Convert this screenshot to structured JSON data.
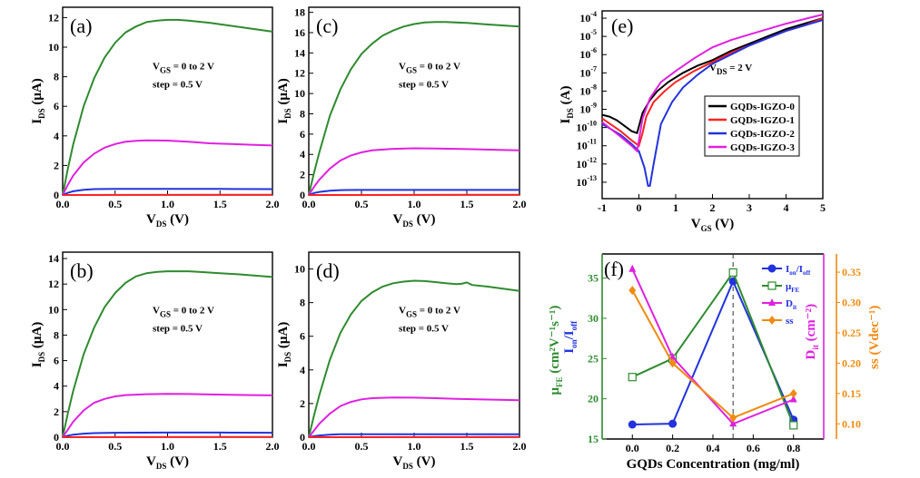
{
  "figure": {
    "background": "#ffffff"
  },
  "colors": {
    "green": "#2e8b2e",
    "magenta": "#e020e0",
    "blue": "#2233dd",
    "red": "#ff2222",
    "black": "#000000",
    "orange": "#f08a10"
  },
  "chart_data": [
    {
      "id": "a",
      "type": "line",
      "panel_label": "(a)",
      "xlabel": {
        "main": "V",
        "sub": "DS",
        "unit": " (V)"
      },
      "ylabel": {
        "main": "I",
        "sub": "DS",
        "unit": " (μA)"
      },
      "xlim": [
        0,
        2.0
      ],
      "ylim": [
        0,
        12.7
      ],
      "xticks": [
        0.0,
        0.5,
        1.0,
        1.5,
        2.0
      ],
      "xtick_labels": [
        "0.0",
        "0.5",
        "1.0",
        "1.5",
        "2.0"
      ],
      "yticks": [
        0,
        2,
        4,
        6,
        8,
        10,
        12
      ],
      "ytick_labels": [
        "0",
        "2",
        "4",
        "6",
        "8",
        "10",
        "12"
      ],
      "annotation": {
        "line1_main": "V",
        "line1_sub": "GS",
        "line1_rest": " = 0 to 2 V",
        "line2": "step = 0.5 V"
      },
      "series": [
        {
          "color": "green",
          "x": [
            0,
            0.05,
            0.1,
            0.2,
            0.3,
            0.4,
            0.5,
            0.6,
            0.7,
            0.8,
            0.9,
            1.0,
            1.1,
            1.2,
            1.4,
            1.6,
            1.8,
            2.0
          ],
          "y": [
            0,
            1.8,
            3.4,
            6.0,
            7.9,
            9.3,
            10.3,
            11.0,
            11.4,
            11.7,
            11.8,
            11.85,
            11.85,
            11.8,
            11.65,
            11.45,
            11.25,
            11.05
          ]
        },
        {
          "color": "magenta",
          "x": [
            0,
            0.05,
            0.1,
            0.2,
            0.3,
            0.4,
            0.5,
            0.6,
            0.7,
            0.8,
            1.0,
            1.2,
            1.4,
            1.6,
            1.8,
            2.0
          ],
          "y": [
            0,
            0.7,
            1.3,
            2.2,
            2.8,
            3.2,
            3.45,
            3.6,
            3.67,
            3.7,
            3.68,
            3.6,
            3.5,
            3.45,
            3.4,
            3.35
          ]
        },
        {
          "color": "blue",
          "x": [
            0,
            0.05,
            0.1,
            0.2,
            0.3,
            0.5,
            1.0,
            1.5,
            2.0
          ],
          "y": [
            0,
            0.15,
            0.25,
            0.35,
            0.4,
            0.42,
            0.42,
            0.41,
            0.4
          ]
        },
        {
          "color": "red",
          "x": [
            0,
            2.0
          ],
          "y": [
            0,
            0.02
          ]
        }
      ]
    },
    {
      "id": "c",
      "type": "line",
      "panel_label": "(c)",
      "xlabel": {
        "main": "V",
        "sub": "DS",
        "unit": " (V)"
      },
      "ylabel": {
        "main": "I",
        "sub": "DS",
        "unit": " (μA)"
      },
      "xlim": [
        0,
        2.0
      ],
      "ylim": [
        0,
        18.5
      ],
      "xticks": [
        0.0,
        0.5,
        1.0,
        1.5,
        2.0
      ],
      "xtick_labels": [
        "0.0",
        "0.5",
        "1.0",
        "1.5",
        "2.0"
      ],
      "yticks": [
        0,
        2,
        4,
        6,
        8,
        10,
        12,
        14,
        16,
        18
      ],
      "ytick_labels": [
        "0",
        "2",
        "4",
        "6",
        "8",
        "10",
        "12",
        "14",
        "16",
        "18"
      ],
      "annotation": {
        "line1_main": "V",
        "line1_sub": "GS",
        "line1_rest": " = 0 to 2 V",
        "line2": "step = 0.5 V"
      },
      "series": [
        {
          "color": "green",
          "x": [
            0,
            0.05,
            0.1,
            0.2,
            0.3,
            0.4,
            0.5,
            0.6,
            0.7,
            0.8,
            0.9,
            1.0,
            1.1,
            1.2,
            1.3,
            1.5,
            1.7,
            2.0
          ],
          "y": [
            0,
            2.2,
            4.2,
            7.8,
            10.4,
            12.4,
            13.9,
            14.9,
            15.7,
            16.2,
            16.6,
            16.85,
            17.0,
            17.05,
            17.05,
            16.95,
            16.8,
            16.6
          ]
        },
        {
          "color": "magenta",
          "x": [
            0,
            0.05,
            0.1,
            0.2,
            0.3,
            0.4,
            0.5,
            0.6,
            0.8,
            1.0,
            1.2,
            1.4,
            1.6,
            1.8,
            2.0
          ],
          "y": [
            0,
            0.8,
            1.5,
            2.6,
            3.4,
            3.9,
            4.2,
            4.4,
            4.55,
            4.6,
            4.58,
            4.55,
            4.5,
            4.45,
            4.4
          ]
        },
        {
          "color": "blue",
          "x": [
            0,
            0.05,
            0.1,
            0.2,
            0.3,
            0.5,
            1.0,
            1.5,
            2.0
          ],
          "y": [
            0,
            0.2,
            0.3,
            0.42,
            0.48,
            0.5,
            0.5,
            0.5,
            0.5
          ]
        },
        {
          "color": "red",
          "x": [
            0,
            2.0
          ],
          "y": [
            0,
            0.03
          ]
        }
      ]
    },
    {
      "id": "e",
      "type": "line",
      "panel_label": "(e)",
      "yscale": "log",
      "xlabel": {
        "main": "V",
        "sub": "GS",
        "unit": " (V)"
      },
      "ylabel": {
        "main": "I",
        "sub": "DS",
        "unit": " (A)"
      },
      "xlim": [
        -1,
        5
      ],
      "ylim_exp": [
        -13.9,
        -3.6
      ],
      "xticks": [
        -1,
        0,
        1,
        2,
        3,
        4,
        5
      ],
      "xtick_labels": [
        "-1",
        "0",
        "1",
        "2",
        "3",
        "4",
        "5"
      ],
      "yticks_exp": [
        -13,
        -12,
        -11,
        -10,
        -9,
        -8,
        -7,
        -6,
        -5,
        -4
      ],
      "ytick_base": "10",
      "ytick_exponents": [
        "-13",
        "-12",
        "-11",
        "-10",
        "-9",
        "-8",
        "-7",
        "-6",
        "-5",
        "-4"
      ],
      "annotation": {
        "line1_main": "V",
        "line1_sub": "DS",
        "line1_rest": " = 2 V"
      },
      "legend": {
        "placement": "center-right",
        "entries": [
          "GQDs-IGZO-0",
          "GQDs-IGZO-1",
          "GQDs-IGZO-2",
          "GQDs-IGZO-3"
        ]
      },
      "series": [
        {
          "name": "GQDs-IGZO-0",
          "color": "black",
          "x": [
            -1,
            -0.8,
            -0.6,
            -0.4,
            -0.2,
            -0.05,
            0.1,
            0.3,
            0.5,
            0.8,
            1.2,
            1.6,
            2,
            2.5,
            3,
            3.5,
            4,
            4.5,
            5
          ],
          "y": [
            -9.3,
            -9.4,
            -9.6,
            -9.9,
            -10.2,
            -10.3,
            -9.2,
            -8.5,
            -8.0,
            -7.5,
            -7.0,
            -6.6,
            -6.3,
            -5.8,
            -5.4,
            -5.0,
            -4.6,
            -4.3,
            -4.0
          ]
        },
        {
          "name": "GQDs-IGZO-1",
          "color": "red",
          "x": [
            -1,
            -0.5,
            -0.2,
            0,
            0.1,
            0.2,
            0.4,
            0.7,
            1.0,
            1.5,
            2,
            2.5,
            3,
            3.5,
            4,
            4.5,
            5
          ],
          "y": [
            -9.5,
            -10.2,
            -10.7,
            -11.0,
            -10.3,
            -9.4,
            -8.6,
            -8.0,
            -7.5,
            -6.9,
            -6.4,
            -5.9,
            -5.5,
            -5.1,
            -4.7,
            -4.4,
            -4.0
          ]
        },
        {
          "name": "GQDs-IGZO-2",
          "color": "blue",
          "x": [
            -1,
            -0.5,
            -0.2,
            0,
            0.15,
            0.25,
            0.3,
            0.4,
            0.6,
            0.9,
            1.2,
            1.6,
            2,
            2.5,
            3,
            3.5,
            4,
            4.5,
            5
          ],
          "y": [
            -9.8,
            -10.4,
            -10.9,
            -11.3,
            -12.2,
            -13.2,
            -13.2,
            -12.0,
            -9.8,
            -8.6,
            -7.8,
            -7.1,
            -6.5,
            -6.0,
            -5.5,
            -5.1,
            -4.7,
            -4.4,
            -4.1
          ]
        },
        {
          "name": "GQDs-IGZO-3",
          "color": "magenta",
          "x": [
            -1,
            -0.5,
            -0.2,
            -0.05,
            0.1,
            0.3,
            0.6,
            1.0,
            1.5,
            2,
            2.5,
            3,
            3.5,
            4,
            4.5,
            5
          ],
          "y": [
            -9.7,
            -10.5,
            -11.0,
            -11.3,
            -9.5,
            -8.4,
            -7.5,
            -6.9,
            -6.2,
            -5.6,
            -5.2,
            -4.9,
            -4.6,
            -4.3,
            -4.05,
            -3.8
          ]
        }
      ]
    },
    {
      "id": "b",
      "type": "line",
      "panel_label": "(b)",
      "xlabel": {
        "main": "V",
        "sub": "DS",
        "unit": " (V)"
      },
      "ylabel": {
        "main": "I",
        "sub": "DS",
        "unit": " (μA)"
      },
      "xlim": [
        0,
        2.0
      ],
      "ylim": [
        0,
        14.5
      ],
      "xticks": [
        0.0,
        0.5,
        1.0,
        1.5,
        2.0
      ],
      "xtick_labels": [
        "0.0",
        "0.5",
        "1.0",
        "1.5",
        "2.0"
      ],
      "yticks": [
        0,
        2,
        4,
        6,
        8,
        10,
        12,
        14
      ],
      "ytick_labels": [
        "0",
        "2",
        "4",
        "6",
        "8",
        "10",
        "12",
        "14"
      ],
      "annotation": {
        "line1_main": "V",
        "line1_sub": "GS",
        "line1_rest": " = 0 to 2 V",
        "line2": "step = 0.5 V"
      },
      "series": [
        {
          "color": "green",
          "x": [
            0,
            0.05,
            0.1,
            0.2,
            0.3,
            0.4,
            0.5,
            0.6,
            0.7,
            0.8,
            0.9,
            1.0,
            1.1,
            1.2,
            1.3,
            1.5,
            1.7,
            2.0
          ],
          "y": [
            0,
            1.9,
            3.6,
            6.5,
            8.6,
            10.2,
            11.3,
            12.1,
            12.6,
            12.85,
            12.95,
            13.0,
            13.0,
            13.0,
            12.95,
            12.85,
            12.75,
            12.55
          ]
        },
        {
          "color": "magenta",
          "x": [
            0,
            0.05,
            0.1,
            0.2,
            0.3,
            0.4,
            0.5,
            0.6,
            0.8,
            1.0,
            1.2,
            1.4,
            1.6,
            1.8,
            2.0
          ],
          "y": [
            0,
            0.6,
            1.2,
            2.1,
            2.7,
            3.0,
            3.2,
            3.3,
            3.37,
            3.4,
            3.38,
            3.35,
            3.32,
            3.3,
            3.28
          ]
        },
        {
          "color": "blue",
          "x": [
            0,
            0.05,
            0.1,
            0.2,
            0.3,
            0.5,
            1.0,
            1.5,
            2.0
          ],
          "y": [
            0,
            0.12,
            0.2,
            0.28,
            0.32,
            0.35,
            0.36,
            0.36,
            0.35
          ]
        },
        {
          "color": "red",
          "x": [
            0,
            2.0
          ],
          "y": [
            0,
            0.02
          ]
        }
      ]
    },
    {
      "id": "d",
      "type": "line",
      "panel_label": "(d)",
      "xlabel": {
        "main": "V",
        "sub": "DS",
        "unit": " (V)"
      },
      "ylabel": {
        "main": "I",
        "sub": "DS",
        "unit": " (μA)"
      },
      "xlim": [
        0,
        2.0
      ],
      "ylim": [
        0,
        11
      ],
      "xticks": [
        0.0,
        0.5,
        1.0,
        1.5,
        2.0
      ],
      "xtick_labels": [
        "0.0",
        "0.5",
        "1.0",
        "1.5",
        "2.0"
      ],
      "yticks": [
        0,
        2,
        4,
        6,
        8,
        10
      ],
      "ytick_labels": [
        "0",
        "2",
        "4",
        "6",
        "8",
        "10"
      ],
      "annotation": {
        "line1_main": "V",
        "line1_sub": "GS",
        "line1_rest": " = 0 to 2 V",
        "line2": "step = 0.5 V"
      },
      "series": [
        {
          "color": "green",
          "x": [
            0,
            0.05,
            0.1,
            0.2,
            0.3,
            0.4,
            0.5,
            0.6,
            0.7,
            0.8,
            0.9,
            1.0,
            1.1,
            1.2,
            1.3,
            1.4,
            1.45,
            1.5,
            1.55,
            1.7,
            2.0
          ],
          "y": [
            0,
            1.3,
            2.5,
            4.6,
            6.2,
            7.3,
            8.1,
            8.6,
            8.95,
            9.15,
            9.25,
            9.3,
            9.28,
            9.22,
            9.15,
            9.1,
            9.12,
            9.2,
            9.05,
            8.95,
            8.7
          ]
        },
        {
          "color": "magenta",
          "x": [
            0,
            0.05,
            0.1,
            0.2,
            0.3,
            0.4,
            0.5,
            0.6,
            0.8,
            1.0,
            1.2,
            1.4,
            1.6,
            1.8,
            2.0
          ],
          "y": [
            0,
            0.4,
            0.8,
            1.4,
            1.85,
            2.1,
            2.25,
            2.32,
            2.36,
            2.35,
            2.32,
            2.28,
            2.25,
            2.22,
            2.2
          ]
        },
        {
          "color": "blue",
          "x": [
            0,
            0.05,
            0.1,
            0.2,
            0.3,
            0.5,
            1.0,
            1.5,
            2.0
          ],
          "y": [
            0,
            0.06,
            0.1,
            0.15,
            0.17,
            0.18,
            0.18,
            0.18,
            0.17
          ]
        },
        {
          "color": "red",
          "x": [
            0,
            2.0
          ],
          "y": [
            0,
            0.01
          ]
        }
      ]
    },
    {
      "id": "f",
      "type": "line",
      "panel_label": "(f)",
      "xlabel": "GQDs Concentration (mg/ml)",
      "xlim": [
        -0.15,
        0.95
      ],
      "xticks": [
        0.0,
        0.2,
        0.4,
        0.6,
        0.8
      ],
      "xtick_labels": [
        "0.0",
        "0.2",
        "0.4",
        "0.6",
        "0.8"
      ],
      "yleft": {
        "lim": [
          15,
          38
        ],
        "ticks": [
          15,
          20,
          25,
          30,
          35
        ],
        "tick_labels": [
          "15",
          "20",
          "25",
          "30",
          "35"
        ],
        "label_mu": "μ",
        "label_mu_sub": "FE",
        "label_mu_rest": " (cm²V⁻¹s⁻¹)",
        "label_ion_main": "I",
        "label_ion_sub1": "on",
        "label_ion_mid": "/I",
        "label_ion_sub2": "off"
      },
      "yright": {
        "lim": [
          0.075,
          0.38
        ],
        "ticks": [
          0.1,
          0.15,
          0.2,
          0.25,
          0.3,
          0.35
        ],
        "tick_labels": [
          "0.10",
          "0.15",
          "0.20",
          "0.25",
          "0.30",
          "0.35"
        ],
        "label_dit": "D",
        "label_dit_sub": "it",
        "label_dit_rest": " (cm⁻²)",
        "label_ss": "ss (Vdec⁻¹)"
      },
      "dashed_x": 0.5,
      "legend": {
        "placement": "top-right",
        "entries": [
          {
            "main": "I",
            "sub1": "on",
            "mid": "/I",
            "sub2": "off"
          },
          {
            "main": "μ",
            "sub1": "FE"
          },
          {
            "main": "D",
            "sub1": "it"
          },
          {
            "main": "ss"
          }
        ]
      },
      "series": [
        {
          "marker": "circle",
          "color": "blue",
          "axis": "left",
          "x": [
            0.0,
            0.2,
            0.5,
            0.8
          ],
          "y": [
            16.8,
            16.9,
            34.6,
            17.4
          ]
        },
        {
          "marker": "square-open",
          "color": "green",
          "axis": "left",
          "x": [
            0.0,
            0.2,
            0.5,
            0.8
          ],
          "y": [
            22.7,
            25.0,
            35.7,
            16.7
          ]
        },
        {
          "marker": "triangle",
          "color": "magenta",
          "axis": "right",
          "x": [
            0.0,
            0.2,
            0.5,
            0.8
          ],
          "y": [
            0.355,
            0.21,
            0.1,
            0.14
          ]
        },
        {
          "marker": "diamond",
          "color": "orange",
          "axis": "right",
          "x": [
            0.0,
            0.2,
            0.5,
            0.8
          ],
          "y": [
            0.32,
            0.2,
            0.11,
            0.15
          ]
        }
      ]
    }
  ]
}
